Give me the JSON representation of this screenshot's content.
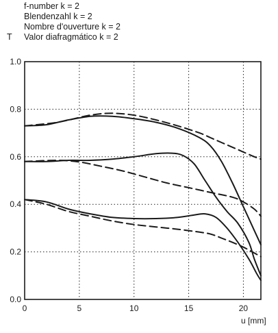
{
  "chart_data": {
    "type": "line",
    "title_lines": [
      "f-number k = 2",
      "Blendenzahl k = 2",
      "Nombre d'ouverture k = 2",
      "Valor diafragmático k = 2"
    ],
    "ylabel": "T",
    "xlabel": "u [mm]",
    "xlim": [
      0,
      21.6
    ],
    "ylim": [
      0.0,
      1.0
    ],
    "xticks": [
      "0",
      "5",
      "10",
      "15",
      "20"
    ],
    "yticks": [
      "0.0",
      "0.2",
      "0.4",
      "0.6",
      "0.8",
      "1.0"
    ],
    "grid": true,
    "series": [
      {
        "style": "solid",
        "points": [
          [
            0,
            0.73
          ],
          [
            2,
            0.735
          ],
          [
            4,
            0.755
          ],
          [
            6,
            0.77
          ],
          [
            8,
            0.77
          ],
          [
            10,
            0.76
          ],
          [
            12,
            0.745
          ],
          [
            14,
            0.72
          ],
          [
            16,
            0.68
          ],
          [
            17,
            0.645
          ],
          [
            18,
            0.58
          ],
          [
            19,
            0.49
          ],
          [
            20,
            0.39
          ],
          [
            21,
            0.29
          ],
          [
            21.6,
            0.23
          ]
        ]
      },
      {
        "style": "dashed",
        "points": [
          [
            0,
            0.73
          ],
          [
            3,
            0.745
          ],
          [
            6,
            0.775
          ],
          [
            8,
            0.783
          ],
          [
            10,
            0.775
          ],
          [
            12,
            0.755
          ],
          [
            14,
            0.73
          ],
          [
            16,
            0.7
          ],
          [
            17,
            0.68
          ],
          [
            18,
            0.66
          ],
          [
            19,
            0.64
          ],
          [
            20,
            0.62
          ],
          [
            21,
            0.6
          ],
          [
            21.6,
            0.59
          ]
        ]
      },
      {
        "style": "solid",
        "points": [
          [
            0,
            0.58
          ],
          [
            2,
            0.58
          ],
          [
            4,
            0.585
          ],
          [
            6,
            0.585
          ],
          [
            8,
            0.59
          ],
          [
            10,
            0.6
          ],
          [
            12,
            0.613
          ],
          [
            13.5,
            0.615
          ],
          [
            14.5,
            0.605
          ],
          [
            15.5,
            0.57
          ],
          [
            16.5,
            0.5
          ],
          [
            17.5,
            0.43
          ],
          [
            18.5,
            0.37
          ],
          [
            19.5,
            0.32
          ],
          [
            20.5,
            0.24
          ],
          [
            21,
            0.17
          ],
          [
            21.6,
            0.1
          ]
        ]
      },
      {
        "style": "dashed",
        "points": [
          [
            0,
            0.58
          ],
          [
            3,
            0.585
          ],
          [
            5,
            0.578
          ],
          [
            7,
            0.56
          ],
          [
            9,
            0.54
          ],
          [
            11,
            0.515
          ],
          [
            13,
            0.49
          ],
          [
            15,
            0.47
          ],
          [
            17,
            0.45
          ],
          [
            19,
            0.43
          ],
          [
            20,
            0.41
          ],
          [
            21,
            0.38
          ],
          [
            21.6,
            0.35
          ]
        ]
      },
      {
        "style": "solid",
        "points": [
          [
            0,
            0.42
          ],
          [
            2,
            0.41
          ],
          [
            4,
            0.38
          ],
          [
            6,
            0.36
          ],
          [
            8,
            0.345
          ],
          [
            10,
            0.34
          ],
          [
            12,
            0.34
          ],
          [
            14,
            0.345
          ],
          [
            15.5,
            0.355
          ],
          [
            16.5,
            0.36
          ],
          [
            17.5,
            0.345
          ],
          [
            18.5,
            0.3
          ],
          [
            19.5,
            0.24
          ],
          [
            20.5,
            0.17
          ],
          [
            21.2,
            0.11
          ],
          [
            21.6,
            0.08
          ]
        ]
      },
      {
        "style": "dashed",
        "points": [
          [
            0,
            0.42
          ],
          [
            2,
            0.4
          ],
          [
            4,
            0.37
          ],
          [
            6,
            0.35
          ],
          [
            8,
            0.33
          ],
          [
            10,
            0.315
          ],
          [
            12,
            0.305
          ],
          [
            14,
            0.295
          ],
          [
            16,
            0.283
          ],
          [
            17,
            0.275
          ],
          [
            18,
            0.258
          ],
          [
            19,
            0.24
          ],
          [
            20,
            0.22
          ],
          [
            21,
            0.195
          ],
          [
            21.6,
            0.18
          ]
        ]
      }
    ]
  }
}
